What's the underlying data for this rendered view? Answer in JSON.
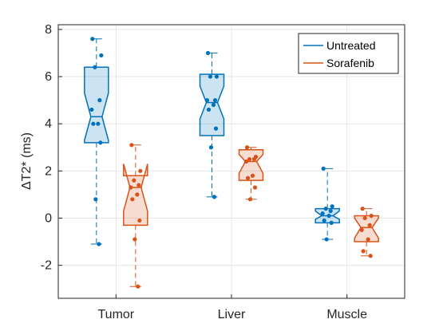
{
  "chart_data": {
    "type": "box",
    "title": "",
    "xlabel": "",
    "ylabel": "ΔT2* (ms)",
    "ylim": [
      -3.4,
      8.2
    ],
    "yticks": [
      -2,
      0,
      2,
      4,
      6,
      8
    ],
    "ytick_labels": [
      "-2",
      "0",
      "2",
      "4",
      "6",
      "8"
    ],
    "categories": [
      "Tumor",
      "Liver",
      "Muscle"
    ],
    "notched": true,
    "grid": true,
    "legend_position": "top-right",
    "series": [
      {
        "name": "Untreated",
        "color": "#0072BD",
        "boxes": [
          {
            "min": -1.1,
            "q1": 3.2,
            "median": 4.3,
            "q3": 6.4,
            "max": 7.6,
            "notch_low": 3.3,
            "notch_high": 5.3,
            "points": [
              7.6,
              6.9,
              6.4,
              5.0,
              4.6,
              4.0,
              4.0,
              3.2,
              0.8,
              -1.1
            ]
          },
          {
            "min": 0.9,
            "q1": 3.5,
            "median": 4.9,
            "q3": 6.1,
            "max": 7.0,
            "notch_low": 4.2,
            "notch_high": 5.6,
            "points": [
              7.0,
              6.0,
              6.0,
              5.0,
              5.0,
              4.8,
              4.6,
              3.8,
              3.0,
              0.9
            ]
          },
          {
            "min": -0.9,
            "q1": -0.2,
            "median": 0.1,
            "q3": 0.4,
            "max": 2.1,
            "notch_low": -0.05,
            "notch_high": 0.3,
            "points": [
              2.1,
              0.5,
              0.4,
              0.3,
              0.2,
              0.1,
              -0.1,
              -0.2,
              -0.9
            ]
          }
        ]
      },
      {
        "name": "Sorafenib",
        "color": "#D95319",
        "boxes": [
          {
            "min": -2.9,
            "q1": -0.3,
            "median": 1.3,
            "q3": 1.8,
            "max": 3.1,
            "notch_low": 0.3,
            "notch_high": 2.3,
            "points": [
              3.1,
              2.0,
              1.6,
              1.4,
              1.3,
              1.0,
              0.8,
              -0.1,
              -0.9,
              -2.9
            ]
          },
          {
            "min": 0.8,
            "q1": 1.6,
            "median": 2.4,
            "q3": 2.9,
            "max": 3.0,
            "notch_low": 1.9,
            "notch_high": 2.7,
            "points": [
              3.0,
              2.6,
              2.5,
              2.5,
              2.4,
              1.8,
              1.7,
              1.3,
              0.8
            ]
          },
          {
            "min": -1.6,
            "q1": -1.0,
            "median": -0.4,
            "q3": 0.1,
            "max": 0.4,
            "notch_low": -0.85,
            "notch_high": 0.0,
            "points": [
              0.4,
              0.1,
              0.0,
              -0.3,
              -0.5,
              -0.9,
              -1.4,
              -1.6
            ]
          }
        ]
      }
    ]
  }
}
